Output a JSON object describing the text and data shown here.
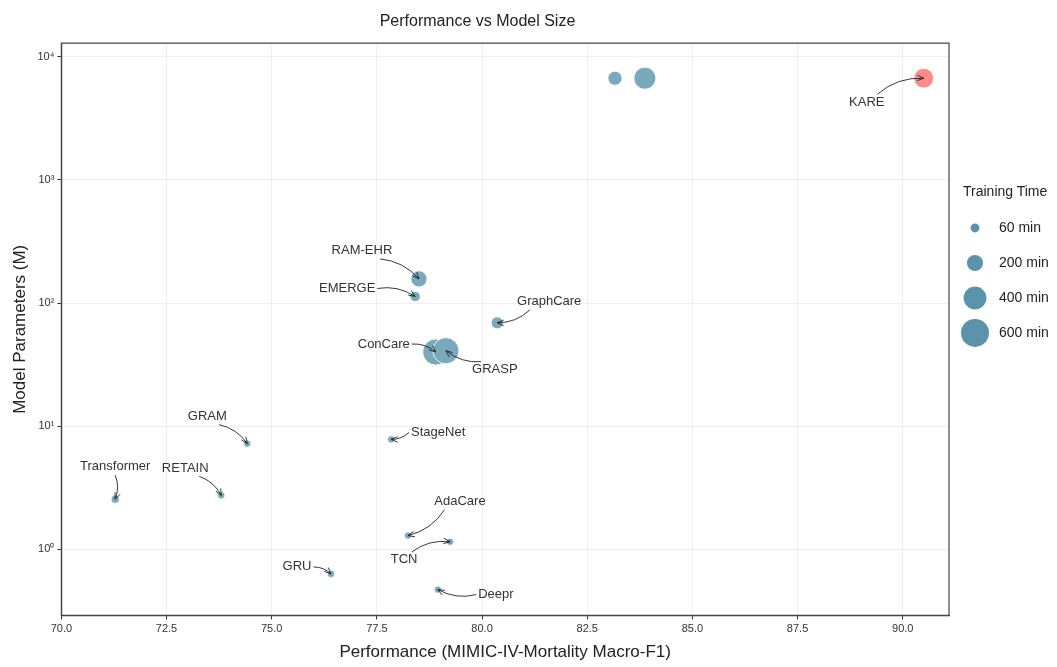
{
  "chart_data": {
    "type": "bubble",
    "title": "Performance vs Model Size",
    "xlabel": "Performance (MIMIC-IV-Mortality Macro-F1)",
    "ylabel": "Model Parameters (M)",
    "legend_title": "Training Time",
    "x": [
      71.28,
      73.8,
      74.42,
      76.41,
      77.84,
      78.24,
      79.24,
      78.95,
      78.9,
      79.14,
      80.36,
      78.41,
      78.5,
      83.16,
      83.87,
      90.5
    ],
    "series": [
      {
        "color": "#5b93ab",
        "values": [
          2.55,
          2.74,
          7.2,
          0.63,
          7.8,
          1.29,
          1.15,
          0.47,
          40,
          41,
          69,
          113,
          157,
          6700,
          6700,
          6700
        ],
        "sizes": [
          50,
          40,
          40,
          40,
          40,
          40,
          40,
          40,
          520,
          520,
          110,
          80,
          200,
          150,
          370,
          300
        ],
        "colors": [
          "#7aa8bd",
          "#7aa8bd",
          "#7aa8bd",
          "#7aa8bd",
          "#7aa8bd",
          "#7aa8bd",
          "#7aa8bd",
          "#7aa8bd",
          "#7aa8bd",
          "#7aa8bd",
          "#7aa8bd",
          "#7aa8bd",
          "#7aa8bd",
          "#7aa8bd",
          "#7aa8bd",
          "#ff8a8a"
        ]
      }
    ],
    "size_legend": [
      {
        "value": 60,
        "label": "60 min"
      },
      {
        "value": 200,
        "label": "200 min"
      },
      {
        "value": 400,
        "label": "400 min"
      },
      {
        "value": 600,
        "label": "600 min"
      }
    ],
    "annotations": [
      {
        "text": "Transformer",
        "x": 71.28,
        "y": 2.55
      },
      {
        "text": "RETAIN",
        "x": 73.8,
        "y": 2.74
      },
      {
        "text": "GRAM",
        "x": 74.42,
        "y": 7.2
      },
      {
        "text": "GRU",
        "x": 76.41,
        "y": 0.63
      },
      {
        "text": "StageNet",
        "x": 77.84,
        "y": 7.8
      },
      {
        "text": "AdaCare",
        "x": 78.24,
        "y": 1.29
      },
      {
        "text": "TCN",
        "x": 79.24,
        "y": 1.15
      },
      {
        "text": "Deepr",
        "x": 78.95,
        "y": 0.47
      },
      {
        "text": "ConCare",
        "x": 78.9,
        "y": 40
      },
      {
        "text": "GRASP",
        "x": 79.14,
        "y": 41
      },
      {
        "text": "GraphCare",
        "x": 80.36,
        "y": 69
      },
      {
        "text": "EMERGE",
        "x": 78.41,
        "y": 113
      },
      {
        "text": "RAM-EHR",
        "x": 78.5,
        "y": 157
      },
      {
        "text": "KARE",
        "x": 90.5,
        "y": 6700
      }
    ],
    "xlim": [
      70,
      91.1
    ],
    "xticks": [
      {
        "value": 70,
        "label": "70.0"
      },
      {
        "value": 72.5,
        "label": "72.5"
      },
      {
        "value": 75,
        "label": "75.0"
      },
      {
        "value": 77.5,
        "label": "77.5"
      },
      {
        "value": 80,
        "label": "80.0"
      },
      {
        "value": 82.5,
        "label": "82.5"
      },
      {
        "value": 85,
        "label": "85.0"
      },
      {
        "value": 87.5,
        "label": "87.5"
      },
      {
        "value": 90,
        "label": "90.0"
      }
    ],
    "ylim": [
      0.29,
      12900
    ],
    "yticks": [
      {
        "value": 1,
        "label": "10⁰"
      },
      {
        "value": 10,
        "label": "10¹"
      },
      {
        "value": 100,
        "label": "10²"
      },
      {
        "value": 1000,
        "label": "10³"
      },
      {
        "value": 10000,
        "label": "10⁴"
      }
    ],
    "log": "y",
    "grid": true
  }
}
